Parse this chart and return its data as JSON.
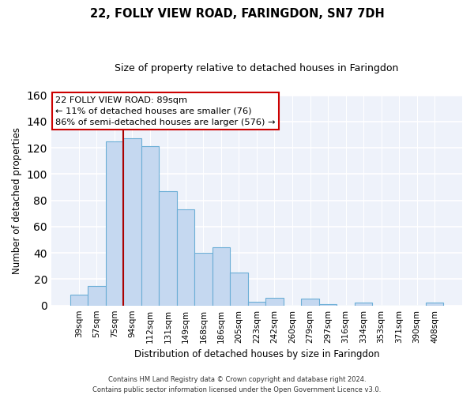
{
  "title": "22, FOLLY VIEW ROAD, FARINGDON, SN7 7DH",
  "subtitle": "Size of property relative to detached houses in Faringdon",
  "xlabel": "Distribution of detached houses by size in Faringdon",
  "ylabel": "Number of detached properties",
  "bar_labels": [
    "39sqm",
    "57sqm",
    "75sqm",
    "94sqm",
    "112sqm",
    "131sqm",
    "149sqm",
    "168sqm",
    "186sqm",
    "205sqm",
    "223sqm",
    "242sqm",
    "260sqm",
    "279sqm",
    "297sqm",
    "316sqm",
    "334sqm",
    "353sqm",
    "371sqm",
    "390sqm",
    "408sqm"
  ],
  "bar_heights": [
    8,
    15,
    125,
    127,
    121,
    87,
    73,
    40,
    44,
    25,
    3,
    6,
    0,
    5,
    1,
    0,
    2,
    0,
    0,
    0,
    2
  ],
  "bar_color": "#c5d8f0",
  "bar_edge_color": "#6baed6",
  "ylim": [
    0,
    160
  ],
  "yticks": [
    0,
    20,
    40,
    60,
    80,
    100,
    120,
    140,
    160
  ],
  "property_line_color": "#aa0000",
  "annotation_title": "22 FOLLY VIEW ROAD: 89sqm",
  "annotation_line1": "← 11% of detached houses are smaller (76)",
  "annotation_line2": "86% of semi-detached houses are larger (576) →",
  "footer_line1": "Contains HM Land Registry data © Crown copyright and database right 2024.",
  "footer_line2": "Contains public sector information licensed under the Open Government Licence v3.0.",
  "background_color": "#eef2fa"
}
